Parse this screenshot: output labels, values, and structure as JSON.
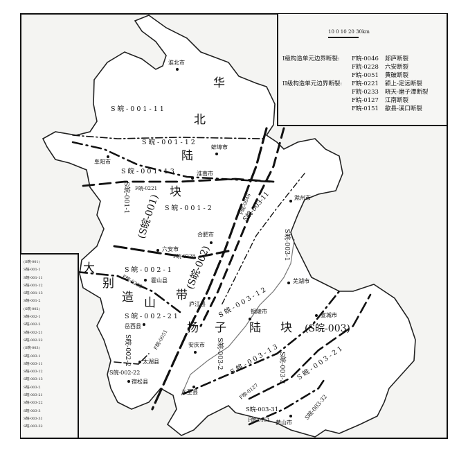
{
  "scale": {
    "label": "10  0  10  20  30km"
  },
  "legend_faults": {
    "class1_title": "I级构造单元边界断裂:",
    "class2_title": "II级构造单元边界断裂:",
    "class1": [
      {
        "code": "F皖-0046",
        "name": "郯庐断裂"
      },
      {
        "code": "F皖-0228",
        "name": "六安断裂"
      },
      {
        "code": "F皖-0051",
        "name": "黄破断裂"
      }
    ],
    "class2": [
      {
        "code": "F皖-0221",
        "name": "颍上-定远断裂"
      },
      {
        "code": "F皖-0233",
        "name": "晓天-磨子潭断裂"
      },
      {
        "code": "F皖-0127",
        "name": "江南断裂"
      },
      {
        "code": "F皖-0151",
        "name": "歙县-溪口断裂"
      }
    ]
  },
  "legend_units": [
    "(S皖-001)",
    "S皖-001-1",
    "S皖-001-11",
    "S皖-001-12",
    "S皖-001-13",
    "S皖-001-2",
    "(S皖-002)",
    "S皖-002-1",
    "S皖-002-2",
    "S皖-002-21",
    "S皖-002-22",
    "(S皖-003)",
    "S皖-003-1",
    "S皖-003-11",
    "S皖-003-12",
    "S皖-003-13",
    "S皖-003-2",
    "S皖-003-21",
    "S皖-003-22",
    "S皖-003-3",
    "S皖-003-31",
    "S皖-003-32"
  ],
  "cities": {
    "huaibei": "淮北市",
    "bengbu": "蚌埠市",
    "fuyang": "阜阳市",
    "huainan": "淮南市",
    "chuzhou": "滁州市",
    "hefei": "合肥市",
    "luan": "六安市",
    "huoshan": "霍山县",
    "wuhu": "芜湖市",
    "xuancheng": "宣城市",
    "lujiang": "庐江县",
    "tongling": "铜陵市",
    "yuexi": "岳西县",
    "anqing": "安庆市",
    "taihu": "太湖县",
    "susong": "宿松县",
    "dongzhi": "东至县",
    "huangshan": "黄山市"
  },
  "regions": {
    "north_china": [
      "华",
      "北",
      "陆",
      "块"
    ],
    "dabie": [
      "大",
      "别",
      "造",
      "山",
      "带"
    ],
    "yangtze": [
      "扬",
      "子",
      "陆",
      "块"
    ],
    "u001": "(S皖-001)",
    "u002": "(S皖-002)",
    "u003": "(S皖-003)",
    "u001_11": "S 皖 - 0 0 1 - 1 1",
    "u001_12": "S 皖 - 0 0 1 - 1 2",
    "u001_13": "S 皖 - 0 0 1 - 1 3",
    "u001_1": "S皖-001-1",
    "u001_2": "S 皖 - 0 0 1 - 2",
    "u002_1": "S 皖 - 0 0 2 - 1",
    "u002_21": "S 皖 - 0 0 2 - 2 1",
    "u002_2": "S皖-002-2",
    "u002_22": "S皖-002-22",
    "u003_1": "S皖-003-1",
    "u003_11": "S皖-003-11",
    "u003_12": "S 皖 - 0 0 3 - 1 2",
    "u003_13": "S 皖 - 0 0 3 - 1 3",
    "u003_2": "S皖-003-2",
    "u003_21": "S 皖 - 0 0 3 - 2 1",
    "u003_3": "S皖-003-3",
    "u003_31": "S皖-003-31",
    "u003_32": "S皖-003-32"
  },
  "fault_labels": {
    "f0221": "F皖-0221",
    "f0228": "F皖-0228",
    "f0046": "F皖-0046",
    "f0233": "F皖-0233",
    "f0051": "F皖-0051",
    "f0127": "F皖-0127",
    "f0151": "F皖-0151"
  }
}
